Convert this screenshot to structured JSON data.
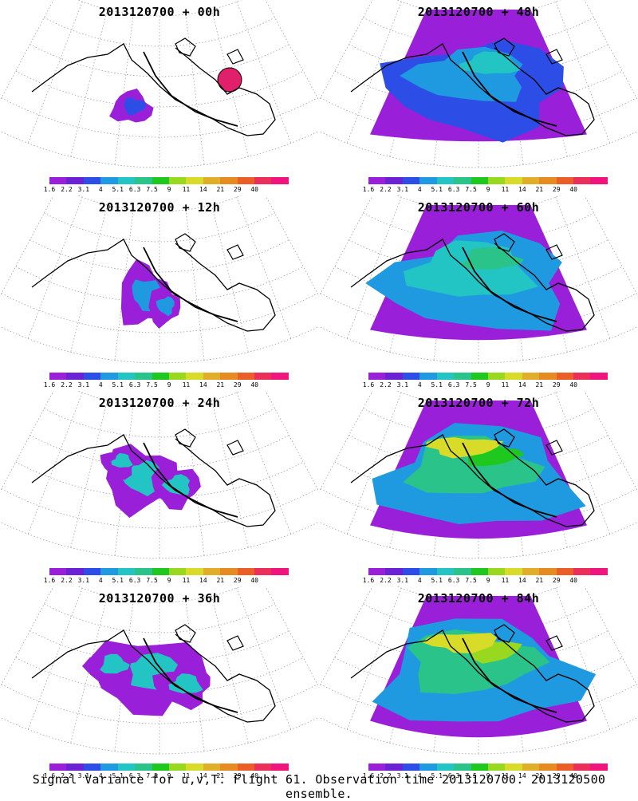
{
  "panels": [
    {
      "title": "2013120700 + 00h",
      "level": 0
    },
    {
      "title": "2013120700 + 48h",
      "level": 4
    },
    {
      "title": "2013120700 + 12h",
      "level": 1
    },
    {
      "title": "2013120700 + 60h",
      "level": 5
    },
    {
      "title": "2013120700 + 24h",
      "level": 2
    },
    {
      "title": "2013120700 + 72h",
      "level": 6
    },
    {
      "title": "2013120700 + 36h",
      "level": 3
    },
    {
      "title": "2013120700 + 84h",
      "level": 7
    }
  ],
  "legend": {
    "colors": [
      "#9a1fd8",
      "#6a22d4",
      "#2c4ee6",
      "#1f9ae0",
      "#22c4c4",
      "#2ac48a",
      "#1fc81f",
      "#98d81f",
      "#d8dc28",
      "#e2ad28",
      "#e68a22",
      "#ec5e28",
      "#ec2e5a",
      "#f0147e"
    ],
    "labels": [
      "1.6",
      "2.2",
      "3.1",
      "4",
      "5.1",
      "6.3",
      "7.5",
      "9",
      "11",
      "14",
      "21",
      "29",
      "40"
    ]
  },
  "caption": "Signal Variance for u,v,T. Flight 61. Observation time 2013120700. 2013120500 ensemble.",
  "colors": {
    "coast": "#000000",
    "grid": "#a0a0a0",
    "track": "#000000",
    "obs_marker": "#e0206a"
  }
}
